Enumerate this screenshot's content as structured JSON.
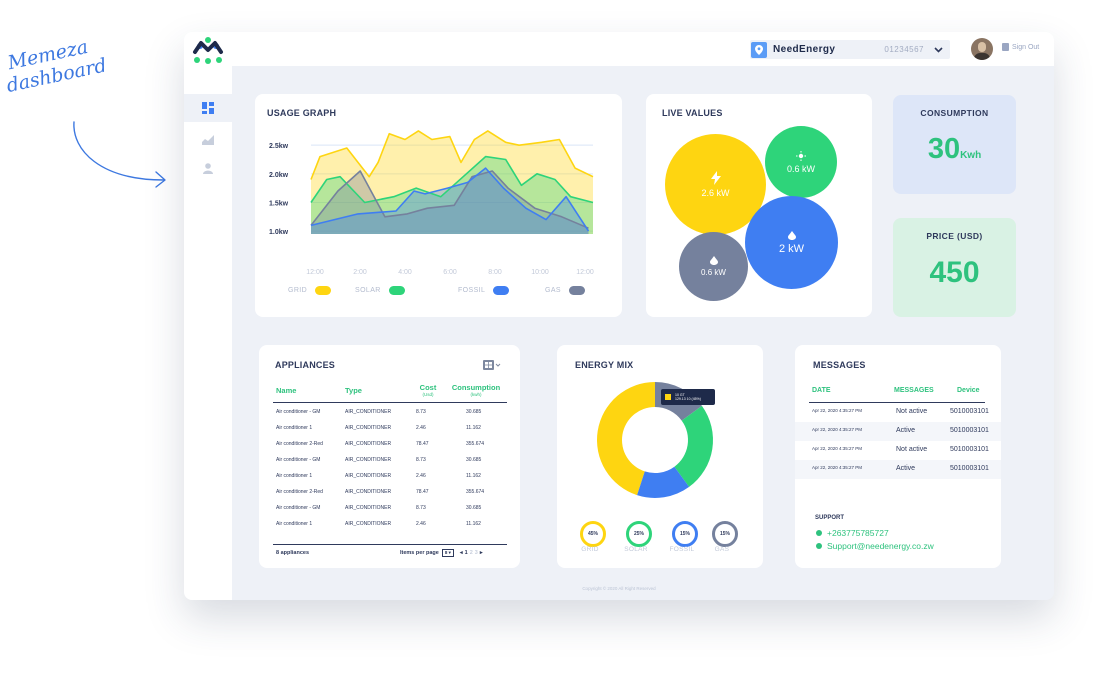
{
  "annotation": {
    "line1": "Memeza",
    "line2": "dashboard"
  },
  "header": {
    "company": "NeedEnergy",
    "account": "01234567",
    "signout": "Sign Out"
  },
  "colors": {
    "grid": "#fed511",
    "solar": "#2ed47a",
    "fossil": "#3f7ef2",
    "gas": "#75819d",
    "accent_green": "#2ec27e"
  },
  "sidebar": {
    "items": [
      {
        "icon": "dashboard-icon",
        "active": true
      },
      {
        "icon": "area-chart-icon",
        "active": false
      },
      {
        "icon": "user-icon",
        "active": false
      }
    ]
  },
  "usage": {
    "title": "USAGE GRAPH",
    "legend": [
      "GRID",
      "SOLAR",
      "FOSSIL",
      "GAS"
    ],
    "chart_data": {
      "type": "area",
      "title": "USAGE GRAPH",
      "categories": [
        "12:00",
        "2:00",
        "4:00",
        "6:00",
        "8:00",
        "10:00",
        "12:00"
      ],
      "y_ticks": [
        "2.5kw",
        "2.0kw",
        "1.5kw",
        "1.0kw"
      ],
      "ylim": [
        0.6,
        2.8
      ],
      "series": [
        {
          "name": "GRID",
          "color": "#fed511",
          "points": [
            [
              0,
              1.9
            ],
            [
              0.4,
              2.3
            ],
            [
              1.6,
              2.45
            ],
            [
              2.6,
              1.95
            ],
            [
              3,
              2.2
            ],
            [
              3.5,
              2.7
            ],
            [
              4.2,
              2.6
            ],
            [
              4.8,
              2.75
            ],
            [
              5.4,
              2.6
            ],
            [
              6.2,
              2.65
            ],
            [
              6.7,
              2.2
            ],
            [
              7.3,
              2.6
            ],
            [
              7.9,
              2.75
            ],
            [
              8.7,
              2.55
            ],
            [
              9.3,
              2.5
            ],
            [
              10.3,
              2.55
            ],
            [
              11.1,
              2.6
            ],
            [
              11.8,
              2.1
            ],
            [
              12.6,
              1.95
            ]
          ]
        },
        {
          "name": "SOLAR",
          "color": "#2ed47a",
          "points": [
            [
              0,
              1.5
            ],
            [
              0.7,
              1.9
            ],
            [
              1.3,
              1.95
            ],
            [
              2.4,
              1.5
            ],
            [
              3.7,
              1.6
            ],
            [
              4.7,
              1.75
            ],
            [
              5.8,
              1.6
            ],
            [
              6.8,
              1.95
            ],
            [
              7.8,
              2.3
            ],
            [
              8.7,
              2.25
            ],
            [
              9.4,
              1.8
            ],
            [
              10.1,
              2.0
            ],
            [
              10.9,
              1.9
            ],
            [
              11.6,
              1.6
            ],
            [
              12.6,
              1.5
            ]
          ]
        },
        {
          "name": "GAS",
          "color": "#75819d",
          "points": [
            [
              0,
              1.1
            ],
            [
              1.2,
              1.7
            ],
            [
              2.2,
              2.05
            ],
            [
              3.3,
              1.25
            ],
            [
              4.3,
              1.3
            ],
            [
              5.2,
              1.4
            ],
            [
              6.4,
              1.45
            ],
            [
              7.2,
              1.95
            ],
            [
              8.1,
              2.05
            ],
            [
              8.8,
              1.75
            ],
            [
              10.0,
              1.4
            ],
            [
              11.2,
              1.25
            ],
            [
              12.4,
              1.05
            ]
          ]
        },
        {
          "name": "FOSSIL",
          "color": "#3f7ef2",
          "points": [
            [
              0,
              1.1
            ],
            [
              2.1,
              1.3
            ],
            [
              3.8,
              1.35
            ],
            [
              4.6,
              1.7
            ],
            [
              5.1,
              1.65
            ],
            [
              6.1,
              1.75
            ],
            [
              7.0,
              1.85
            ],
            [
              7.8,
              2.1
            ],
            [
              8.6,
              1.75
            ],
            [
              9.6,
              1.4
            ],
            [
              10.5,
              1.2
            ],
            [
              11.4,
              1.6
            ],
            [
              12.4,
              1.0
            ]
          ]
        }
      ]
    }
  },
  "live": {
    "title": "LIVE VALUES",
    "bubbles": [
      {
        "name": "grid",
        "value": "2.6 kW",
        "icon": "lightning-icon"
      },
      {
        "name": "solar",
        "value": "0.6 kW",
        "icon": "sun-icon"
      },
      {
        "name": "fossil",
        "value": "2 kW",
        "icon": "drop-icon"
      },
      {
        "name": "gas",
        "value": "0.6 kW",
        "icon": "drop-icon"
      }
    ]
  },
  "consumption": {
    "title": "CONSUMPTION",
    "value": "30",
    "unit": "Kwh"
  },
  "price": {
    "title": "PRICE (USD)",
    "value": "450"
  },
  "appliances": {
    "title": "APPLIANCES",
    "columns": [
      "Name",
      "Type",
      "Cost",
      "Consumption"
    ],
    "column_units": [
      "",
      "",
      "(Usd)",
      "(kwh)"
    ],
    "rows": [
      [
        "Air conditioner - GM",
        "AIR_CONDITIONER",
        "8.73",
        "30.685"
      ],
      [
        "Air conditioner 1",
        "AIR_CONDITIONER",
        "2.46",
        "11.162"
      ],
      [
        "Air conditioner 2-Red",
        "AIR_CONDITIONER",
        "78.47",
        "355.674"
      ],
      [
        "Air conditioner - GM",
        "AIR_CONDITIONER",
        "8.73",
        "30.685"
      ],
      [
        "Air conditioner 1",
        "AIR_CONDITIONER",
        "2.46",
        "11.162"
      ],
      [
        "Air conditioner 2-Red",
        "AIR_CONDITIONER",
        "78.47",
        "355.674"
      ],
      [
        "Air conditioner - GM",
        "AIR_CONDITIONER",
        "8.73",
        "30.685"
      ],
      [
        "Air conditioner 1",
        "AIR_CONDITIONER",
        "2.46",
        "11.162"
      ]
    ],
    "count_label": "8 appliances",
    "items_per_page_label": "Items per page",
    "items_per_page": "8",
    "pages": [
      "1",
      "2",
      "3"
    ]
  },
  "energy_mix": {
    "title": "ENERGY MIX",
    "tooltip_line1": "10 GT",
    "tooltip_line2": "129.13 10 (45%)",
    "chart_data": {
      "type": "pie",
      "labels": [
        "GRID",
        "SOLAR",
        "FOSSIL",
        "GAS"
      ],
      "values": [
        45,
        25,
        15,
        15
      ],
      "colors": [
        "#fed511",
        "#2ed47a",
        "#3f7ef2",
        "#75819d"
      ]
    },
    "rings": [
      {
        "label": "GRID",
        "pct": "45%"
      },
      {
        "label": "SOLAR",
        "pct": "25%"
      },
      {
        "label": "FOSSIL",
        "pct": "15%"
      },
      {
        "label": "GAS",
        "pct": "15%"
      }
    ]
  },
  "messages": {
    "title": "MESSAGES",
    "columns": [
      "DATE",
      "MESSAGES",
      "Device"
    ],
    "rows": [
      [
        "Apr 22, 2020 4:35:27 PM",
        "Not active",
        "5010003101"
      ],
      [
        "Apr 22, 2020 4:35:27 PM",
        "Active",
        "5010003101"
      ],
      [
        "Apr 22, 2020 4:35:27 PM",
        "Not active",
        "5010003101"
      ],
      [
        "Apr 22, 2020 4:35:27 PM",
        "Active",
        "5010003101"
      ]
    ],
    "support_title": "SUPPORT",
    "phone": "+263775785727",
    "email": "Support@needenergy.co.zw"
  },
  "footer": "Copyright © 2020 All Right Reserved"
}
